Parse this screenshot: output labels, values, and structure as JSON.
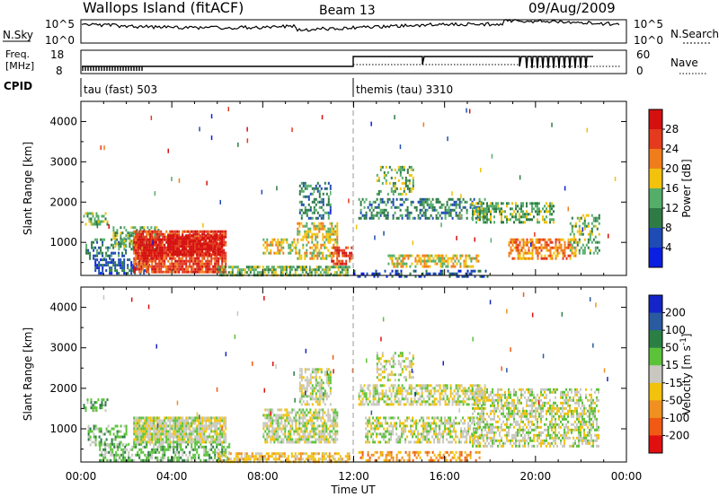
{
  "header": {
    "title": "Wallops Island (fitACF)",
    "beam": "Beam 13",
    "date": "09/Aug/2009"
  },
  "panels": {
    "nsky_label": "N.Sky",
    "nsky_ticks": [
      "10^5",
      "10^0"
    ],
    "nsearch_label": "N.Search",
    "nsearch_ticks": [
      "10^5",
      "10^0"
    ],
    "freq_label_1": "Freq.",
    "freq_label_2": "[MHz]",
    "freq_ticks": [
      "18",
      "8"
    ],
    "nave_label": "Nave",
    "nave_ticks": [
      "60",
      "0"
    ],
    "cpid_label": "CPID",
    "cpid_segments": [
      {
        "label": "tau (fast) 503",
        "start_h": 0
      },
      {
        "label": "themis (tau) 3310",
        "start_h": 12
      }
    ]
  },
  "chart_data": [
    {
      "type": "heatmap",
      "name": "power",
      "ylabel": "Slant Range [km]",
      "xlabel": "",
      "xlim": [
        0,
        24
      ],
      "ylim": [
        180,
        4500
      ],
      "yticks": [
        1000,
        2000,
        3000,
        4000
      ],
      "colorbar": {
        "label": "Power [dB]",
        "ticks": [
          4,
          8,
          12,
          16,
          20,
          24,
          28
        ],
        "colors": [
          "#0a1fe0",
          "#1e4bb4",
          "#2e7b45",
          "#55ad6a",
          "#f2c20c",
          "#f07d1c",
          "#e43a1e",
          "#d41010"
        ],
        "range": [
          0,
          32
        ]
      },
      "echo_regions": [
        {
          "t0": 0.1,
          "t1": 1.2,
          "r0": 1450,
          "r1": 1750,
          "level": 3,
          "density": 0.55
        },
        {
          "t0": 0.2,
          "t1": 2.0,
          "r0": 600,
          "r1": 1100,
          "level": 2,
          "density": 0.45
        },
        {
          "t0": 0.6,
          "t1": 3.0,
          "r0": 200,
          "r1": 600,
          "level": 1,
          "density": 0.5
        },
        {
          "t0": 1.4,
          "t1": 3.5,
          "r0": 850,
          "r1": 1400,
          "level": 3,
          "density": 0.5
        },
        {
          "t0": 2.3,
          "t1": 6.4,
          "r0": 250,
          "r1": 1300,
          "level": 6,
          "density": 0.85
        },
        {
          "t0": 2.5,
          "t1": 3.6,
          "r0": 600,
          "r1": 1100,
          "level": 7,
          "density": 0.9
        },
        {
          "t0": 3.8,
          "t1": 6.2,
          "r0": 700,
          "r1": 1200,
          "level": 7,
          "density": 0.85
        },
        {
          "t0": 6.0,
          "t1": 11.8,
          "r0": 200,
          "r1": 420,
          "level": 3,
          "density": 0.7
        },
        {
          "t0": 8.0,
          "t1": 9.5,
          "r0": 750,
          "r1": 1100,
          "level": 4,
          "density": 0.5
        },
        {
          "t0": 9.5,
          "t1": 11.3,
          "r0": 600,
          "r1": 1500,
          "level": 4,
          "density": 0.55
        },
        {
          "t0": 9.6,
          "t1": 11.0,
          "r0": 1600,
          "r1": 2500,
          "level": 2,
          "density": 0.45
        },
        {
          "t0": 11.0,
          "t1": 11.9,
          "r0": 450,
          "r1": 900,
          "level": 6,
          "density": 0.6
        },
        {
          "t0": 12.2,
          "t1": 17.8,
          "r0": 1600,
          "r1": 2100,
          "level": 2,
          "density": 0.45
        },
        {
          "t0": 13.0,
          "t1": 14.6,
          "r0": 2200,
          "r1": 2900,
          "level": 3,
          "density": 0.35
        },
        {
          "t0": 13.5,
          "t1": 17.5,
          "r0": 400,
          "r1": 700,
          "level": 4,
          "density": 0.6
        },
        {
          "t0": 17.2,
          "t1": 20.8,
          "r0": 1500,
          "r1": 2000,
          "level": 3,
          "density": 0.5
        },
        {
          "t0": 18.8,
          "t1": 21.8,
          "r0": 600,
          "r1": 1100,
          "level": 5,
          "density": 0.6
        },
        {
          "t0": 21.5,
          "t1": 22.8,
          "r0": 700,
          "r1": 1700,
          "level": 3,
          "density": 0.4
        },
        {
          "t0": 12.0,
          "t1": 18.0,
          "r0": 180,
          "r1": 320,
          "level": 1,
          "density": 0.4
        }
      ]
    },
    {
      "type": "heatmap",
      "name": "velocity",
      "ylabel": "Slant Range [km]",
      "xlabel": "Time UT",
      "xlim": [
        0,
        24
      ],
      "xticks": [
        "00:00",
        "04:00",
        "08:00",
        "12:00",
        "16:00",
        "20:00",
        "00:00"
      ],
      "ylim": [
        180,
        4500
      ],
      "yticks": [
        1000,
        2000,
        3000,
        4000
      ],
      "colorbar": {
        "label": "Velocity [m s^-1]",
        "ticks": [
          "200",
          "100",
          "50",
          "15",
          "-15",
          "-50",
          "-100",
          "-200"
        ],
        "colors": [
          "#1524c8",
          "#2a5aa0",
          "#2c7f44",
          "#5cc23a",
          "#c8c8c0",
          "#f2c20c",
          "#f09020",
          "#f05a14",
          "#e01010"
        ],
        "range": [
          -250,
          250
        ]
      },
      "echo_regions": [
        {
          "t0": 0.1,
          "t1": 1.2,
          "r0": 1450,
          "r1": 1750,
          "level": 3,
          "density": 0.5
        },
        {
          "t0": 0.3,
          "t1": 2.0,
          "r0": 600,
          "r1": 1100,
          "level": 3,
          "density": 0.4
        },
        {
          "t0": 0.8,
          "t1": 6.5,
          "r0": 200,
          "r1": 650,
          "level": 3,
          "density": 0.6
        },
        {
          "t0": 2.3,
          "t1": 6.4,
          "r0": 700,
          "r1": 1300,
          "level": 4,
          "density": 0.9
        },
        {
          "t0": 6.0,
          "t1": 11.8,
          "r0": 200,
          "r1": 420,
          "level": 5,
          "density": 0.65
        },
        {
          "t0": 8.0,
          "t1": 11.3,
          "r0": 650,
          "r1": 1500,
          "level": 4,
          "density": 0.7
        },
        {
          "t0": 9.6,
          "t1": 11.0,
          "r0": 1600,
          "r1": 2500,
          "level": 4,
          "density": 0.55
        },
        {
          "t0": 12.2,
          "t1": 17.8,
          "r0": 1600,
          "r1": 2100,
          "level": 4,
          "density": 0.6
        },
        {
          "t0": 13.0,
          "t1": 14.6,
          "r0": 2200,
          "r1": 2900,
          "level": 4,
          "density": 0.4
        },
        {
          "t0": 12.5,
          "t1": 17.5,
          "r0": 700,
          "r1": 1300,
          "level": 4,
          "density": 0.55
        },
        {
          "t0": 12.2,
          "t1": 17.5,
          "r0": 200,
          "r1": 450,
          "level": 6,
          "density": 0.45
        },
        {
          "t0": 17.2,
          "t1": 22.8,
          "r0": 600,
          "r1": 2000,
          "level": 4,
          "density": 0.55
        }
      ]
    }
  ]
}
